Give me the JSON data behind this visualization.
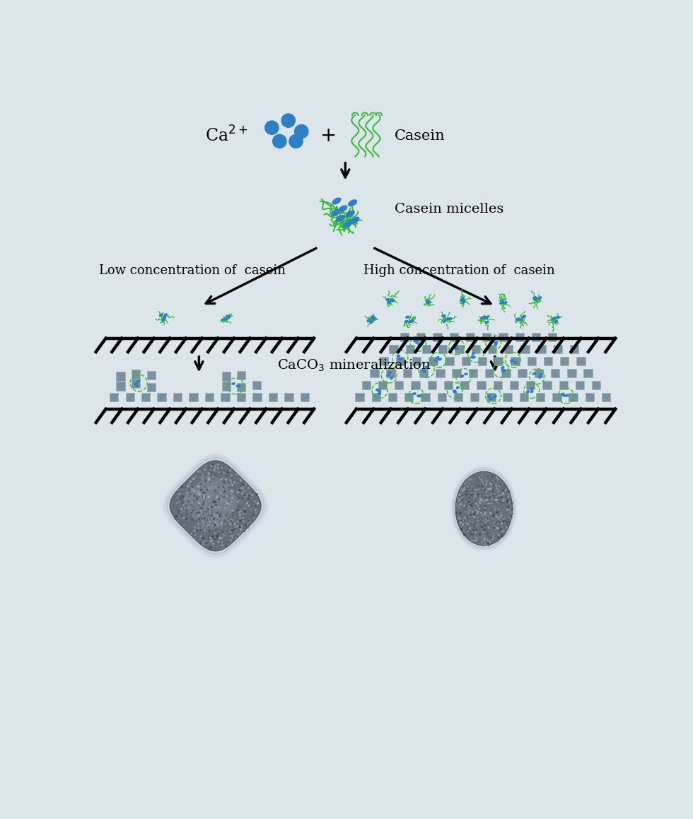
{
  "bg_color": "#dce6ea",
  "arrow_color": "#0a0a0a",
  "blue_color": "#2e7fc4",
  "green_color": "#3ab83a",
  "gray_sq_color": "#7a909d",
  "gray_sq_edge": "#9ab0bb",
  "labels": {
    "ca2plus": "Ca$^{2+}$",
    "plus": "+",
    "casein": "Casein",
    "micelles": "Casein micelles",
    "low_conc": "Low concentration of  casein",
    "high_conc": "High concentration of  casein",
    "mineralization": "CaCO$_3$ mineralization"
  },
  "fig_width": 9.8,
  "fig_height": 11.59,
  "dpi": 100
}
